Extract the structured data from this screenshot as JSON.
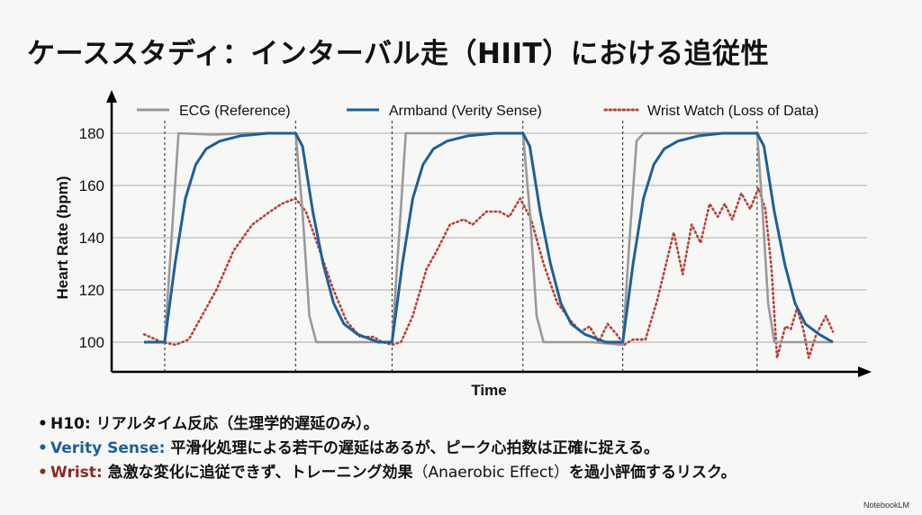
{
  "title": "ケーススタディ：インターバル走（HIIT）における追従性",
  "chart_data": {
    "type": "line",
    "title": "",
    "xlabel": "Time",
    "ylabel": "Heart Rate (bpm)",
    "ylim": [
      92,
      186
    ],
    "yticks": [
      100,
      120,
      140,
      160,
      180
    ],
    "xlim": [
      0,
      100
    ],
    "grid": "horizontal",
    "legend_position": "top",
    "interval_markers": [
      3,
      22,
      36,
      55,
      69.5,
      89
    ],
    "series": [
      {
        "name": "ECG (Reference)",
        "color": "#999999",
        "style": "solid",
        "points": [
          [
            0,
            100
          ],
          [
            3,
            100
          ],
          [
            4,
            140
          ],
          [
            5,
            180
          ],
          [
            10,
            179.5
          ],
          [
            15,
            180
          ],
          [
            22,
            180
          ],
          [
            23,
            150
          ],
          [
            24,
            110
          ],
          [
            25,
            100
          ],
          [
            30,
            100
          ],
          [
            36,
            100
          ],
          [
            37,
            140
          ],
          [
            38,
            180
          ],
          [
            45,
            180
          ],
          [
            55,
            180
          ],
          [
            56,
            150
          ],
          [
            57,
            110
          ],
          [
            58,
            100
          ],
          [
            65,
            100
          ],
          [
            69.5,
            99
          ],
          [
            70.5,
            140
          ],
          [
            71.5,
            177
          ],
          [
            72.5,
            180
          ],
          [
            80,
            180
          ],
          [
            89,
            180
          ],
          [
            89.8,
            150
          ],
          [
            90.6,
            115
          ],
          [
            91.5,
            100
          ],
          [
            100,
            100
          ]
        ]
      },
      {
        "name": "Armband (Verity Sense)",
        "color": "#1f6096",
        "style": "solid",
        "points": [
          [
            0,
            100
          ],
          [
            3,
            100
          ],
          [
            4.5,
            130
          ],
          [
            6,
            155
          ],
          [
            7.5,
            168
          ],
          [
            9,
            174
          ],
          [
            11,
            177
          ],
          [
            14,
            179
          ],
          [
            18,
            180
          ],
          [
            22,
            180
          ],
          [
            23,
            175
          ],
          [
            24.5,
            150
          ],
          [
            26,
            130
          ],
          [
            27.5,
            115
          ],
          [
            29,
            107
          ],
          [
            31,
            103
          ],
          [
            34,
            100
          ],
          [
            36,
            100
          ],
          [
            37.5,
            130
          ],
          [
            39,
            155
          ],
          [
            40.5,
            168
          ],
          [
            42,
            174
          ],
          [
            44,
            177
          ],
          [
            47,
            179
          ],
          [
            51,
            180
          ],
          [
            55,
            180
          ],
          [
            56,
            175
          ],
          [
            57.5,
            150
          ],
          [
            59,
            130
          ],
          [
            60.5,
            115
          ],
          [
            62,
            107
          ],
          [
            64,
            103
          ],
          [
            67,
            100
          ],
          [
            69.5,
            100
          ],
          [
            71,
            130
          ],
          [
            72.5,
            155
          ],
          [
            74,
            168
          ],
          [
            75.5,
            174
          ],
          [
            77.5,
            177
          ],
          [
            80.5,
            179
          ],
          [
            84,
            180
          ],
          [
            89,
            180
          ],
          [
            90,
            175
          ],
          [
            91.5,
            150
          ],
          [
            93,
            130
          ],
          [
            94.5,
            115
          ],
          [
            96,
            107
          ],
          [
            98,
            103
          ],
          [
            100,
            100
          ]
        ]
      },
      {
        "name": "Wrist Watch (Loss of Data)",
        "color": "#b8403a",
        "style": "dotted",
        "points": [
          [
            0,
            103
          ],
          [
            2.6,
            100
          ],
          [
            4.6,
            99
          ],
          [
            6.5,
            101
          ],
          [
            10.5,
            120
          ],
          [
            13,
            135
          ],
          [
            15.7,
            145
          ],
          [
            18.3,
            150
          ],
          [
            20,
            153
          ],
          [
            22,
            155
          ],
          [
            23.5,
            150
          ],
          [
            25.5,
            135
          ],
          [
            27.5,
            120
          ],
          [
            29.4,
            108
          ],
          [
            31.4,
            102
          ],
          [
            33.3,
            102
          ],
          [
            34.6,
            100
          ],
          [
            36,
            99
          ],
          [
            37.3,
            100
          ],
          [
            39,
            110
          ],
          [
            41,
            128
          ],
          [
            42.5,
            135
          ],
          [
            44.4,
            145
          ],
          [
            46.4,
            147
          ],
          [
            47.7,
            145
          ],
          [
            49.7,
            150
          ],
          [
            51.6,
            150
          ],
          [
            53,
            148
          ],
          [
            54.6,
            155
          ],
          [
            56.2,
            147
          ],
          [
            58,
            130
          ],
          [
            60,
            115
          ],
          [
            62,
            108
          ],
          [
            63.4,
            104
          ],
          [
            64.7,
            106
          ],
          [
            66,
            100
          ],
          [
            67.3,
            107
          ],
          [
            68.6,
            103
          ],
          [
            69.7,
            99
          ],
          [
            71,
            101
          ],
          [
            72.8,
            101
          ],
          [
            74.5,
            116
          ],
          [
            76.9,
            142
          ],
          [
            78.2,
            126
          ],
          [
            79.5,
            145
          ],
          [
            80.8,
            138
          ],
          [
            82.1,
            153
          ],
          [
            83.3,
            148
          ],
          [
            84.3,
            153
          ],
          [
            85.4,
            147
          ],
          [
            86.7,
            157
          ],
          [
            88,
            151
          ],
          [
            89.2,
            159
          ],
          [
            90.2,
            151
          ],
          [
            91.1,
            128
          ],
          [
            91.9,
            94
          ],
          [
            93.1,
            106
          ],
          [
            93.9,
            105
          ],
          [
            94.8,
            113
          ],
          [
            95.7,
            105
          ],
          [
            96.5,
            94
          ],
          [
            97.6,
            103
          ],
          [
            99,
            110
          ],
          [
            100,
            104
          ]
        ]
      }
    ]
  },
  "bullets": [
    {
      "label": "H10:",
      "text": "リアルタイム反応（生理学的遅延のみ）。",
      "color": "#111111"
    },
    {
      "label": "Verity Sense:",
      "text": "平滑化処理による若干の遅延はあるが、ピーク心拍数は正確に捉える。",
      "color": "#1f6096"
    },
    {
      "label": "Wrist:",
      "text": "急激な変化に追従できず、トレーニング効果",
      "text_paren": "（Anaerobic Effect）",
      "text_tail": "を過小評価するリスク。",
      "color": "#8b2a25"
    }
  ],
  "brand": "NotebookLM"
}
